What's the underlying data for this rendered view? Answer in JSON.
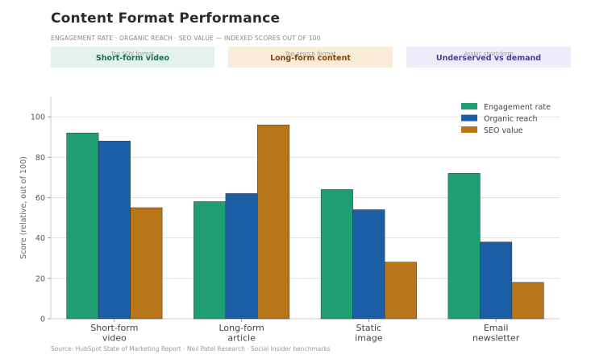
{
  "header": {
    "title": "Content Format Performance",
    "subtitle": "ENGAGEMENT RATE · ORGANIC REACH · SEO VALUE — INDEXED SCORES OUT OF 100"
  },
  "cards": [
    {
      "caption": "Top SOV format",
      "value": "Short-form video",
      "bg": "#e3f3ec",
      "color": "#1d6b4f"
    },
    {
      "caption": "Top search format",
      "value": "Long-form content",
      "bg": "#fbecd9",
      "color": "#7a4510"
    },
    {
      "caption": "Arabic short-form",
      "value": "Underserved vs demand",
      "bg": "#ececfb",
      "color": "#4a3f8f"
    }
  ],
  "chart_data": {
    "type": "bar",
    "categories": [
      "Short-form\nvideo",
      "Long-form\narticle",
      "Static\nimage",
      "Email\nnewsletter"
    ],
    "series": [
      {
        "name": "Engagement rate",
        "color": "#1f9e74",
        "values": [
          92,
          58,
          64,
          72
        ]
      },
      {
        "name": "Organic reach",
        "color": "#1b5ea6",
        "values": [
          88,
          62,
          54,
          38
        ]
      },
      {
        "name": "SEO value",
        "color": "#b87519",
        "values": [
          55,
          96,
          28,
          18
        ]
      }
    ],
    "ylabel": "Score (relative, out of 100)",
    "ylim": [
      0,
      110
    ],
    "yticks": [
      0,
      20,
      40,
      60,
      80,
      100
    ],
    "grid": true,
    "legend": "top-right"
  },
  "footer": {
    "source": "Source: HubSpot State of Marketing Report · Neil Patel Research · Social Insider benchmarks"
  }
}
